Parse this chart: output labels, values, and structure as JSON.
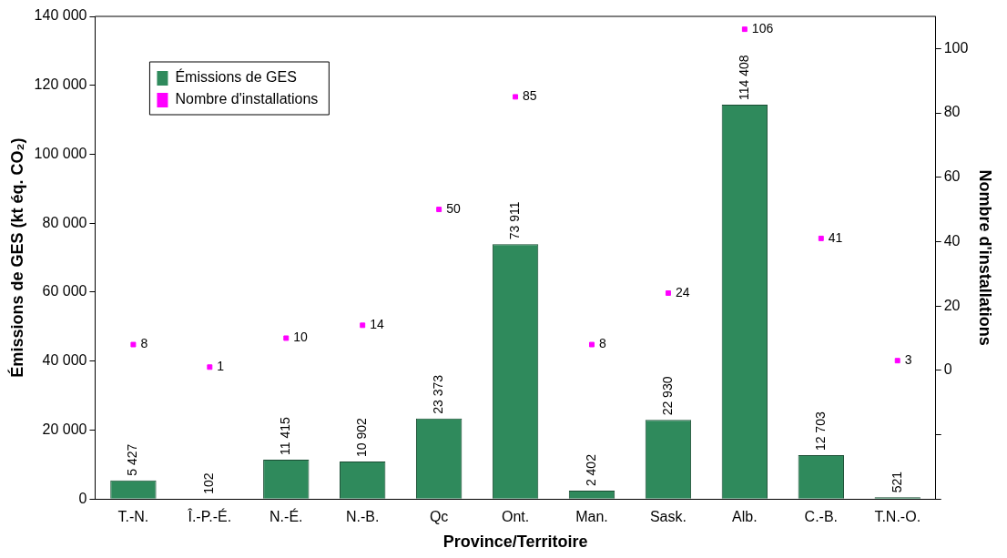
{
  "chart_data": {
    "type": "bar",
    "xlabel": "Province/Territoire",
    "ylabel": "Émissions de GES (kt éq. CO₂)",
    "y2label": "Nombre d'installations",
    "categories": [
      "T.-N.",
      "Î.-P.-É.",
      "N.-É.",
      "N.-B.",
      "Qc",
      "Ont.",
      "Man.",
      "Sask.",
      "Alb.",
      "C.-B.",
      "T.N.-O."
    ],
    "series": [
      {
        "name": "Émissions de GES",
        "color": "#2f8a5c",
        "values": [
          5427,
          102,
          11415,
          10902,
          23373,
          73911,
          2402,
          22930,
          114408,
          12703,
          521
        ],
        "value_labels": [
          "5 427",
          "102",
          "11 415",
          "10 902",
          "23 373",
          "73 911",
          "2 402",
          "22 930",
          "114 408",
          "12 703",
          "521"
        ]
      },
      {
        "name": "Nombre d'installations",
        "type": "scatter",
        "axis": "y2",
        "color": "#ff00ff",
        "values": [
          8,
          1,
          10,
          14,
          50,
          85,
          8,
          24,
          106,
          41,
          3
        ],
        "value_labels": [
          "8",
          "1",
          "10",
          "14",
          "50",
          "85",
          "8",
          "24",
          "106",
          "41",
          "3"
        ]
      }
    ],
    "ylim": [
      0,
      140000
    ],
    "yticks": [
      0,
      {
        "value": 20000,
        "label": "20 000"
      },
      {
        "value": 40000,
        "label": "40 000"
      },
      {
        "value": 60000,
        "label": "60 000"
      },
      {
        "value": 80000,
        "label": "80 000"
      },
      {
        "value": 100000,
        "label": "100 000"
      },
      {
        "value": 120000,
        "label": "120 000"
      },
      {
        "value": 140000,
        "label": "140 000"
      }
    ],
    "y2lim": [
      -40,
      110
    ],
    "y2ticks": [
      {
        "value": -40,
        "label": null
      },
      {
        "value": -20,
        "label": null
      },
      0,
      20,
      40,
      60,
      80,
      100
    ],
    "grid": false,
    "legend": "top left",
    "marker": "square"
  }
}
